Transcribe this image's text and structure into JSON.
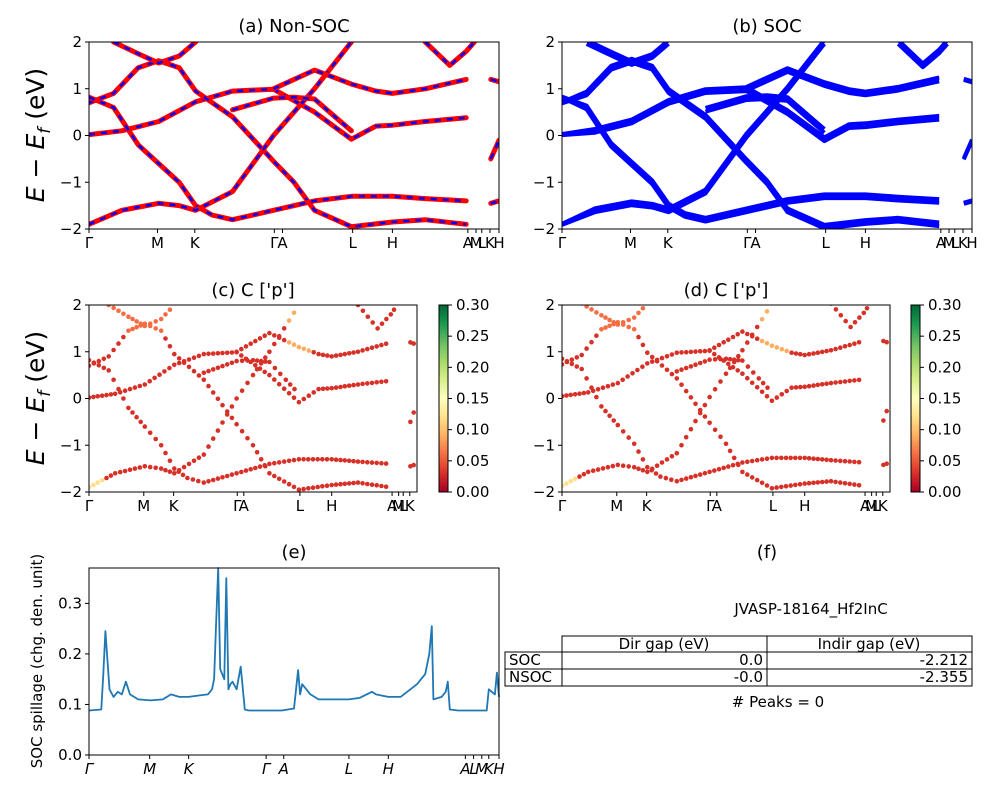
{
  "figure": {
    "colors": {
      "nonsoc_line1": "#ff0000",
      "nonsoc_line2": "#0000ff",
      "soc_line": "#0000ff",
      "spillage_line": "#1f77b4"
    }
  },
  "panels": {
    "a": {
      "title": "(a) Non-SOC",
      "ylabel": "E − E_f (eV)"
    },
    "b": {
      "title": "(b) SOC"
    },
    "c": {
      "title": "(c)  C ['p']",
      "ylabel": "E − E_f (eV)",
      "colorbar_ticks": [
        "0.00",
        "0.05",
        "0.10",
        "0.15",
        "0.20",
        "0.25",
        "0.30"
      ]
    },
    "d": {
      "title": "(d) C ['p']",
      "colorbar_ticks": [
        "0.00",
        "0.05",
        "0.10",
        "0.15",
        "0.20",
        "0.25",
        "0.30"
      ]
    },
    "e": {
      "title": "(e)",
      "ylabel": "SOC spillage (chg. den. unit)"
    },
    "f": {
      "title": "(f)",
      "material": "JVASP-18164_Hf2InC",
      "table": {
        "columns": [
          "Dir gap (eV)",
          "Indir gap (eV)"
        ],
        "rows": [
          {
            "label": "SOC",
            "dir": "0.0",
            "indir": "-2.212"
          },
          {
            "label": "NSOC",
            "dir": "-0.0",
            "indir": "-2.355"
          }
        ]
      },
      "peaks": "# Peaks = 0"
    }
  },
  "chart_data": [
    {
      "type": "line",
      "title": "(a) Non-SOC",
      "ylabel": "E − E_f (eV)",
      "ylim": [
        -2,
        2
      ],
      "yticks": [
        -2,
        -1,
        0,
        1,
        2
      ],
      "kpath_labels": [
        "Γ",
        "M",
        "K",
        "Γ",
        "A",
        "L",
        "H",
        "A",
        "M",
        "L",
        "K",
        "H"
      ],
      "kpath_positions": [
        0,
        0.167,
        0.258,
        0.452,
        0.472,
        0.643,
        0.74,
        0.924,
        0.944,
        0.958,
        0.978,
        1.0
      ],
      "series": [
        {
          "name": "",
          "color": "#ff0000",
          "style": "solid",
          "bands": [
            [
              [
                0,
                0.02
              ],
              [
                0.08,
                0.1
              ],
              [
                0.17,
                0.3
              ],
              [
                0.26,
                0.72
              ],
              [
                0.35,
                0.95
              ],
              [
                0.45,
                0.99
              ],
              [
                0.55,
                0.5
              ],
              [
                0.64,
                -0.08
              ],
              [
                0.7,
                0.2
              ],
              [
                0.74,
                0.22
              ],
              [
                0.82,
                0.3
              ],
              [
                0.92,
                0.38
              ]
            ],
            [
              [
                0,
                0.7
              ],
              [
                0.06,
                0.9
              ],
              [
                0.12,
                1.45
              ],
              [
                0.17,
                1.6
              ],
              [
                0.22,
                1.45
              ],
              [
                0.26,
                0.95
              ],
              [
                0.35,
                0.4
              ],
              [
                0.45,
                -0.55
              ],
              [
                0.5,
                -1.0
              ],
              [
                0.55,
                -1.6
              ],
              [
                0.64,
                -1.95
              ],
              [
                0.74,
                -1.85
              ],
              [
                0.82,
                -1.8
              ],
              [
                0.92,
                -1.9
              ]
            ],
            [
              [
                0,
                0.82
              ],
              [
                0.06,
                0.6
              ],
              [
                0.12,
                -0.2
              ],
              [
                0.17,
                -0.6
              ],
              [
                0.22,
                -1.0
              ],
              [
                0.26,
                -1.5
              ],
              [
                0.3,
                -1.7
              ],
              [
                0.35,
                -1.8
              ],
              [
                0.45,
                -1.6
              ],
              [
                0.55,
                -1.4
              ],
              [
                0.64,
                -1.3
              ],
              [
                0.74,
                -1.3
              ],
              [
                0.82,
                -1.35
              ],
              [
                0.92,
                -1.4
              ]
            ],
            [
              [
                0,
                -1.9
              ],
              [
                0.08,
                -1.6
              ],
              [
                0.17,
                -1.45
              ],
              [
                0.22,
                -1.5
              ],
              [
                0.26,
                -1.6
              ],
              [
                0.35,
                -1.2
              ],
              [
                0.45,
                0.0
              ],
              [
                0.5,
                0.5
              ],
              [
                0.55,
                1.0
              ],
              [
                0.64,
                2.0
              ]
            ],
            [
              [
                0.06,
                2.0
              ],
              [
                0.12,
                1.75
              ],
              [
                0.17,
                1.55
              ],
              [
                0.22,
                1.7
              ],
              [
                0.26,
                2.0
              ]
            ],
            [
              [
                0.45,
                1.0
              ],
              [
                0.55,
                1.4
              ],
              [
                0.64,
                1.1
              ],
              [
                0.7,
                0.95
              ],
              [
                0.74,
                0.9
              ],
              [
                0.82,
                1.0
              ],
              [
                0.92,
                1.2
              ]
            ],
            [
              [
                0.35,
                0.55
              ],
              [
                0.45,
                0.8
              ],
              [
                0.5,
                0.82
              ],
              [
                0.55,
                0.78
              ],
              [
                0.6,
                0.4
              ],
              [
                0.64,
                0.1
              ]
            ],
            [
              [
                0.82,
                2.0
              ],
              [
                0.88,
                1.5
              ],
              [
                0.92,
                1.8
              ],
              [
                0.94,
                2.0
              ]
            ],
            [
              [
                0.98,
                1.2
              ],
              [
                1.0,
                1.15
              ]
            ],
            [
              [
                0.98,
                -0.5
              ],
              [
                1.0,
                -0.1
              ]
            ],
            [
              [
                0.98,
                -1.45
              ],
              [
                1.0,
                -1.4
              ]
            ]
          ]
        },
        {
          "name": "",
          "color": "#0000ff",
          "style": "dashed",
          "bands": "same as red (overlapping)"
        }
      ]
    },
    {
      "type": "line",
      "title": "(b) SOC",
      "ylim": [
        -2,
        2
      ],
      "yticks": [
        -2,
        -1,
        0,
        1,
        2
      ],
      "kpath_labels": [
        "Γ",
        "M",
        "K",
        "Γ",
        "A",
        "L",
        "H",
        "A",
        "M",
        "L",
        "K",
        "H"
      ],
      "series": [
        {
          "name": "",
          "color": "#0000ff",
          "style": "solid",
          "bands": "band structure similar to (a) with spin-orbit splitting"
        }
      ]
    },
    {
      "type": "scatter",
      "title": "(c)  C ['p']",
      "ylabel": "E − E_f (eV)",
      "ylim": [
        -2,
        2
      ],
      "yticks": [
        -2,
        -1,
        0,
        1,
        2
      ],
      "colorbar": {
        "range": [
          0,
          0.3
        ],
        "colormap": "RdYlGn",
        "ticks": [
          0,
          0.05,
          0.1,
          0.15,
          0.2,
          0.25,
          0.3
        ]
      },
      "kpath_labels": [
        "Γ",
        "M",
        "K",
        "Γ",
        "A",
        "L",
        "H",
        "A",
        "M",
        "L",
        "K"
      ]
    },
    {
      "type": "scatter",
      "title": "(d) C ['p']",
      "ylim": [
        -2,
        2
      ],
      "yticks": [
        -2,
        -1,
        0,
        1,
        2
      ],
      "colorbar": {
        "range": [
          0,
          0.3
        ],
        "colormap": "RdYlGn",
        "ticks": [
          0,
          0.05,
          0.1,
          0.15,
          0.2,
          0.25,
          0.3
        ]
      },
      "kpath_labels": [
        "Γ",
        "M",
        "K",
        "Γ",
        "A",
        "L",
        "H",
        "A",
        "M",
        "L",
        "K"
      ]
    },
    {
      "type": "line",
      "title": "(e)",
      "ylabel": "SOC spillage (chg. den. unit)",
      "ylim": [
        0.0,
        0.37
      ],
      "yticks": [
        0.0,
        0.1,
        0.2,
        0.3
      ],
      "kpath_labels": [
        "Γ",
        "M",
        "K",
        "Γ",
        "A",
        "L",
        "H",
        "A",
        "L",
        "M",
        "K",
        "H"
      ],
      "kpath_positions": [
        0,
        0.148,
        0.243,
        0.432,
        0.475,
        0.634,
        0.73,
        0.918,
        0.938,
        0.958,
        0.975,
        1.0
      ],
      "x": [
        0,
        0.03,
        0.035,
        0.04,
        0.05,
        0.06,
        0.07,
        0.08,
        0.09,
        0.1,
        0.12,
        0.15,
        0.18,
        0.2,
        0.22,
        0.243,
        0.27,
        0.29,
        0.3,
        0.305,
        0.31,
        0.315,
        0.32,
        0.33,
        0.335,
        0.34,
        0.345,
        0.35,
        0.36,
        0.37,
        0.38,
        0.39,
        0.4,
        0.42,
        0.432,
        0.45,
        0.47,
        0.5,
        0.51,
        0.515,
        0.52,
        0.54,
        0.56,
        0.6,
        0.634,
        0.66,
        0.69,
        0.7,
        0.73,
        0.76,
        0.8,
        0.82,
        0.83,
        0.836,
        0.84,
        0.86,
        0.87,
        0.875,
        0.88,
        0.9,
        0.918,
        0.95,
        0.97,
        0.975,
        0.99,
        0.995,
        1.0
      ],
      "values": [
        0.088,
        0.09,
        0.16,
        0.245,
        0.13,
        0.115,
        0.125,
        0.12,
        0.145,
        0.12,
        0.11,
        0.108,
        0.11,
        0.12,
        0.115,
        0.115,
        0.118,
        0.12,
        0.13,
        0.15,
        0.26,
        0.37,
        0.17,
        0.15,
        0.35,
        0.13,
        0.14,
        0.145,
        0.13,
        0.175,
        0.09,
        0.088,
        0.088,
        0.088,
        0.088,
        0.088,
        0.088,
        0.092,
        0.168,
        0.12,
        0.14,
        0.12,
        0.11,
        0.11,
        0.11,
        0.113,
        0.125,
        0.12,
        0.115,
        0.115,
        0.14,
        0.16,
        0.2,
        0.255,
        0.11,
        0.115,
        0.125,
        0.145,
        0.09,
        0.088,
        0.088,
        0.088,
        0.088,
        0.13,
        0.12,
        0.163,
        0.115
      ]
    }
  ]
}
